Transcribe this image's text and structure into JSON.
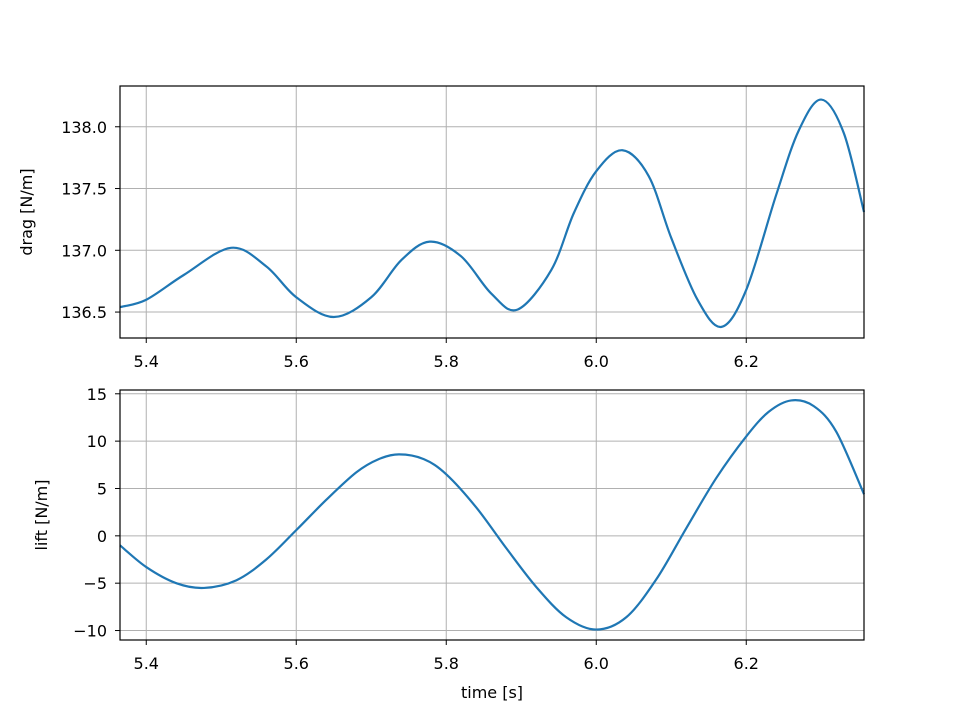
{
  "colors": {
    "line": "#1f77b4",
    "grid": "#b0b0b0",
    "background": "#ffffff"
  },
  "chart_data": [
    {
      "type": "line",
      "title": "",
      "xlabel": "",
      "ylabel": "drag [N/m]",
      "xlim": [
        5.365,
        6.357
      ],
      "ylim": [
        136.29,
        138.33
      ],
      "xticks": [
        5.4,
        5.6,
        5.8,
        6.0,
        6.2
      ],
      "xtick_labels": [
        "5.4",
        "5.6",
        "5.8",
        "6.0",
        "6.2"
      ],
      "yticks": [
        136.5,
        137.0,
        137.5,
        138.0
      ],
      "ytick_labels": [
        "136.5",
        "137.0",
        "137.5",
        "138.0"
      ],
      "grid": true,
      "series": [
        {
          "x": [
            5.365,
            5.4,
            5.45,
            5.513,
            5.56,
            5.6,
            5.65,
            5.7,
            5.74,
            5.778,
            5.82,
            5.86,
            5.895,
            5.94,
            5.97,
            6.0,
            6.035,
            6.07,
            6.1,
            6.135,
            6.167,
            6.2,
            6.24,
            6.27,
            6.3,
            6.33,
            6.357
          ],
          "y": [
            136.54,
            136.6,
            136.8,
            137.02,
            136.87,
            136.62,
            136.46,
            136.62,
            136.92,
            137.07,
            136.95,
            136.65,
            136.52,
            136.84,
            137.3,
            137.64,
            137.81,
            137.6,
            137.1,
            136.6,
            136.38,
            136.68,
            137.45,
            137.97,
            138.22,
            137.95,
            137.31
          ]
        }
      ]
    },
    {
      "type": "line",
      "title": "",
      "xlabel": "time [s]",
      "ylabel": "lift [N/m]",
      "xlim": [
        5.365,
        6.357
      ],
      "ylim": [
        -11.0,
        15.4
      ],
      "xticks": [
        5.4,
        5.6,
        5.8,
        6.0,
        6.2
      ],
      "xtick_labels": [
        "5.4",
        "5.6",
        "5.8",
        "6.0",
        "6.2"
      ],
      "yticks": [
        -10,
        -5,
        0,
        5,
        10,
        15
      ],
      "ytick_labels": [
        "−10",
        "−5",
        "0",
        "5",
        "10",
        "15"
      ],
      "grid": true,
      "series": [
        {
          "x": [
            5.365,
            5.4,
            5.44,
            5.477,
            5.52,
            5.56,
            5.6,
            5.64,
            5.68,
            5.71,
            5.737,
            5.77,
            5.8,
            5.84,
            5.88,
            5.92,
            5.96,
            6.0,
            6.04,
            6.08,
            6.12,
            6.16,
            6.2,
            6.23,
            6.26,
            6.29,
            6.32,
            6.357
          ],
          "y": [
            -1.0,
            -3.3,
            -5.0,
            -5.5,
            -4.7,
            -2.5,
            0.6,
            3.8,
            6.7,
            8.1,
            8.6,
            8.1,
            6.5,
            3.0,
            -1.3,
            -5.4,
            -8.6,
            -9.9,
            -8.6,
            -4.6,
            0.8,
            6.1,
            10.5,
            13.1,
            14.3,
            13.7,
            11.0,
            4.4
          ]
        }
      ]
    }
  ]
}
